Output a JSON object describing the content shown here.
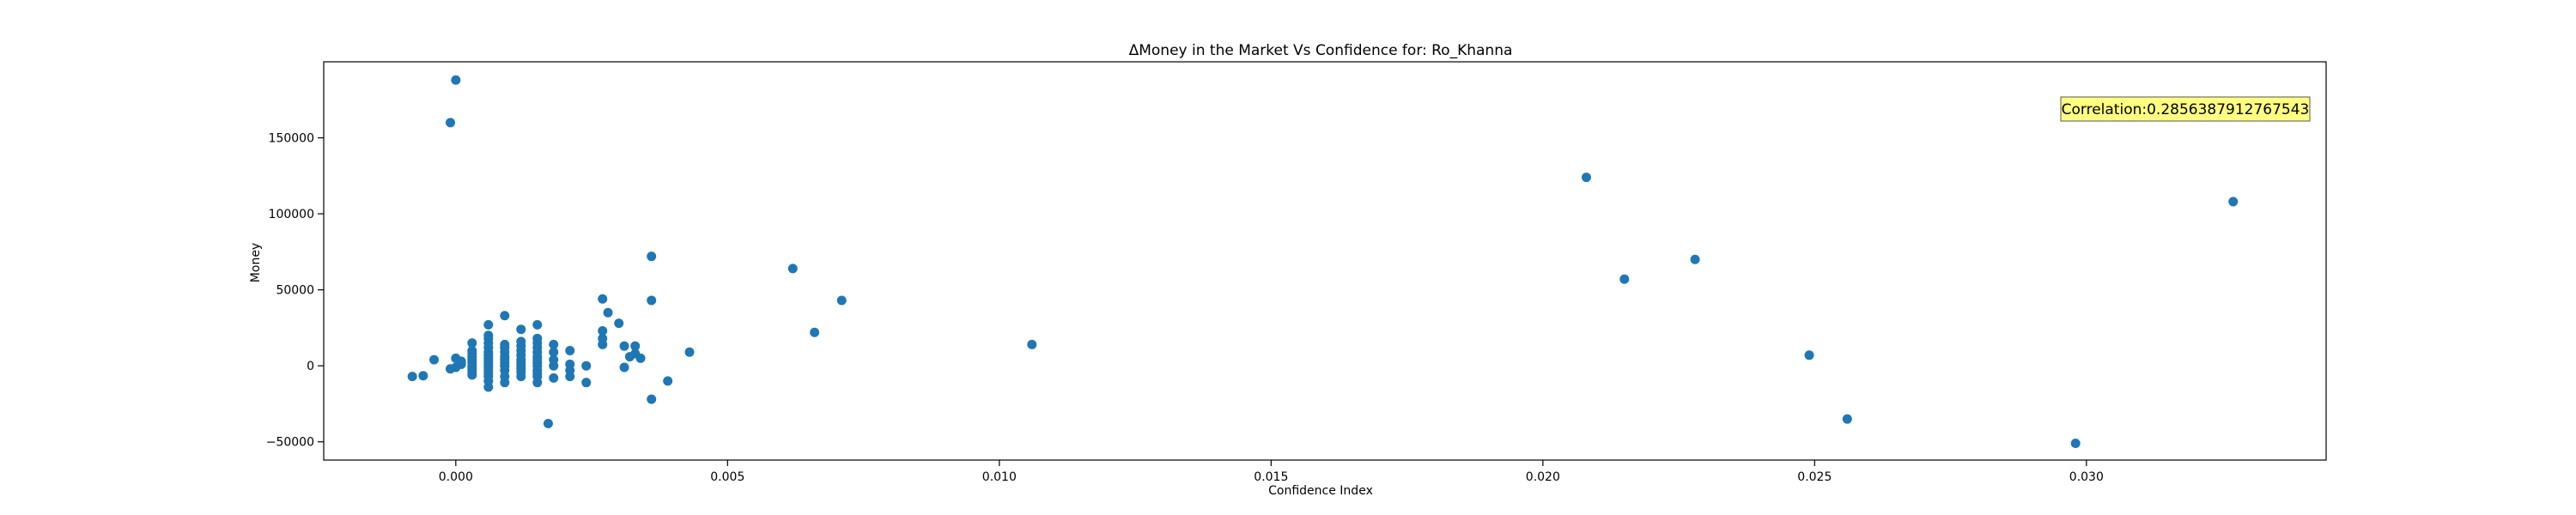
{
  "chart_data": {
    "type": "scatter",
    "title": "ΔMoney in the Market Vs Confidence for: Ro_Khanna",
    "xlabel": "Confidence Index",
    "ylabel": "Money",
    "xlim": [
      -0.00243,
      0.03441
    ],
    "ylim": [
      -62000,
      200000
    ],
    "xticks": [
      0.0,
      0.005,
      0.01,
      0.015,
      0.02,
      0.025,
      0.03
    ],
    "xtick_labels": [
      "0.000",
      "0.005",
      "0.010",
      "0.015",
      "0.020",
      "0.025",
      "0.030"
    ],
    "yticks": [
      -50000,
      0,
      50000,
      100000,
      150000
    ],
    "ytick_labels": [
      "−50000",
      "0",
      "50000",
      "100000",
      "150000"
    ],
    "grid": false,
    "annotation": {
      "text": "Correlation:0.2856387912767543",
      "position": "top-right",
      "background": "#ffff80"
    },
    "colors": {
      "marker": "#1f77b4"
    },
    "series": [
      {
        "points": [
          [
            -0.0008,
            -7000
          ],
          [
            -0.0006,
            -6500
          ],
          [
            -0.0004,
            4000
          ],
          [
            -0.0001,
            160000
          ],
          [
            0.0,
            188000
          ],
          [
            -0.0001,
            -2000
          ],
          [
            0.0,
            -1000
          ],
          [
            0.0001,
            1000
          ],
          [
            0.0001,
            3000
          ],
          [
            0.0,
            5000
          ],
          [
            0.0003,
            -6000
          ],
          [
            0.0003,
            -4000
          ],
          [
            0.0003,
            -2000
          ],
          [
            0.0003,
            0
          ],
          [
            0.0003,
            2000
          ],
          [
            0.0003,
            4000
          ],
          [
            0.0003,
            6000
          ],
          [
            0.0003,
            8000
          ],
          [
            0.0003,
            10000
          ],
          [
            0.0003,
            15000
          ],
          [
            0.0006,
            -14000
          ],
          [
            0.0006,
            -10000
          ],
          [
            0.0006,
            -7000
          ],
          [
            0.0006,
            -5000
          ],
          [
            0.0006,
            -3000
          ],
          [
            0.0006,
            -1000
          ],
          [
            0.0006,
            1000
          ],
          [
            0.0006,
            3000
          ],
          [
            0.0006,
            5000
          ],
          [
            0.0006,
            7000
          ],
          [
            0.0006,
            9000
          ],
          [
            0.0006,
            12000
          ],
          [
            0.0006,
            15000
          ],
          [
            0.0006,
            18000
          ],
          [
            0.0006,
            20000
          ],
          [
            0.0006,
            27000
          ],
          [
            0.0009,
            -11000
          ],
          [
            0.0009,
            -7000
          ],
          [
            0.0009,
            -3000
          ],
          [
            0.0009,
            0
          ],
          [
            0.0009,
            2000
          ],
          [
            0.0009,
            4000
          ],
          [
            0.0009,
            6000
          ],
          [
            0.0009,
            9000
          ],
          [
            0.0009,
            12000
          ],
          [
            0.0009,
            14000
          ],
          [
            0.0009,
            33000
          ],
          [
            0.0012,
            -7000
          ],
          [
            0.0012,
            -4000
          ],
          [
            0.0012,
            -2000
          ],
          [
            0.0012,
            0
          ],
          [
            0.0012,
            2000
          ],
          [
            0.0012,
            4000
          ],
          [
            0.0012,
            7000
          ],
          [
            0.0012,
            10000
          ],
          [
            0.0012,
            13000
          ],
          [
            0.0012,
            16000
          ],
          [
            0.0012,
            24000
          ],
          [
            0.0015,
            -11000
          ],
          [
            0.0015,
            -7000
          ],
          [
            0.0015,
            -5000
          ],
          [
            0.0015,
            -3000
          ],
          [
            0.0015,
            0
          ],
          [
            0.0015,
            2000
          ],
          [
            0.0015,
            4000
          ],
          [
            0.0015,
            6000
          ],
          [
            0.0015,
            9000
          ],
          [
            0.0015,
            12000
          ],
          [
            0.0015,
            15000
          ],
          [
            0.0015,
            18000
          ],
          [
            0.0015,
            27000
          ],
          [
            0.0017,
            -38000
          ],
          [
            0.0018,
            -8000
          ],
          [
            0.0018,
            0
          ],
          [
            0.0018,
            4000
          ],
          [
            0.0018,
            9000
          ],
          [
            0.0018,
            14000
          ],
          [
            0.0021,
            -7000
          ],
          [
            0.0021,
            -3000
          ],
          [
            0.0021,
            1000
          ],
          [
            0.0021,
            10000
          ],
          [
            0.0024,
            -11000
          ],
          [
            0.0024,
            0
          ],
          [
            0.0027,
            14000
          ],
          [
            0.0027,
            18000
          ],
          [
            0.0027,
            23000
          ],
          [
            0.0027,
            44000
          ],
          [
            0.0028,
            35000
          ],
          [
            0.003,
            28000
          ],
          [
            0.0031,
            -1000
          ],
          [
            0.0031,
            13000
          ],
          [
            0.0032,
            6000
          ],
          [
            0.0033,
            8000
          ],
          [
            0.0033,
            13000
          ],
          [
            0.0034,
            5000
          ],
          [
            0.0036,
            72000
          ],
          [
            0.0036,
            43000
          ],
          [
            0.0036,
            -22000
          ],
          [
            0.0039,
            -10000
          ],
          [
            0.0043,
            9000
          ],
          [
            0.0062,
            64000
          ],
          [
            0.0066,
            22000
          ],
          [
            0.0071,
            43000
          ],
          [
            0.0106,
            14000
          ],
          [
            0.0208,
            124000
          ],
          [
            0.0215,
            57000
          ],
          [
            0.0228,
            70000
          ],
          [
            0.0249,
            7000
          ],
          [
            0.0256,
            -35000
          ],
          [
            0.0298,
            -51000
          ],
          [
            0.0327,
            108000
          ]
        ]
      }
    ]
  }
}
